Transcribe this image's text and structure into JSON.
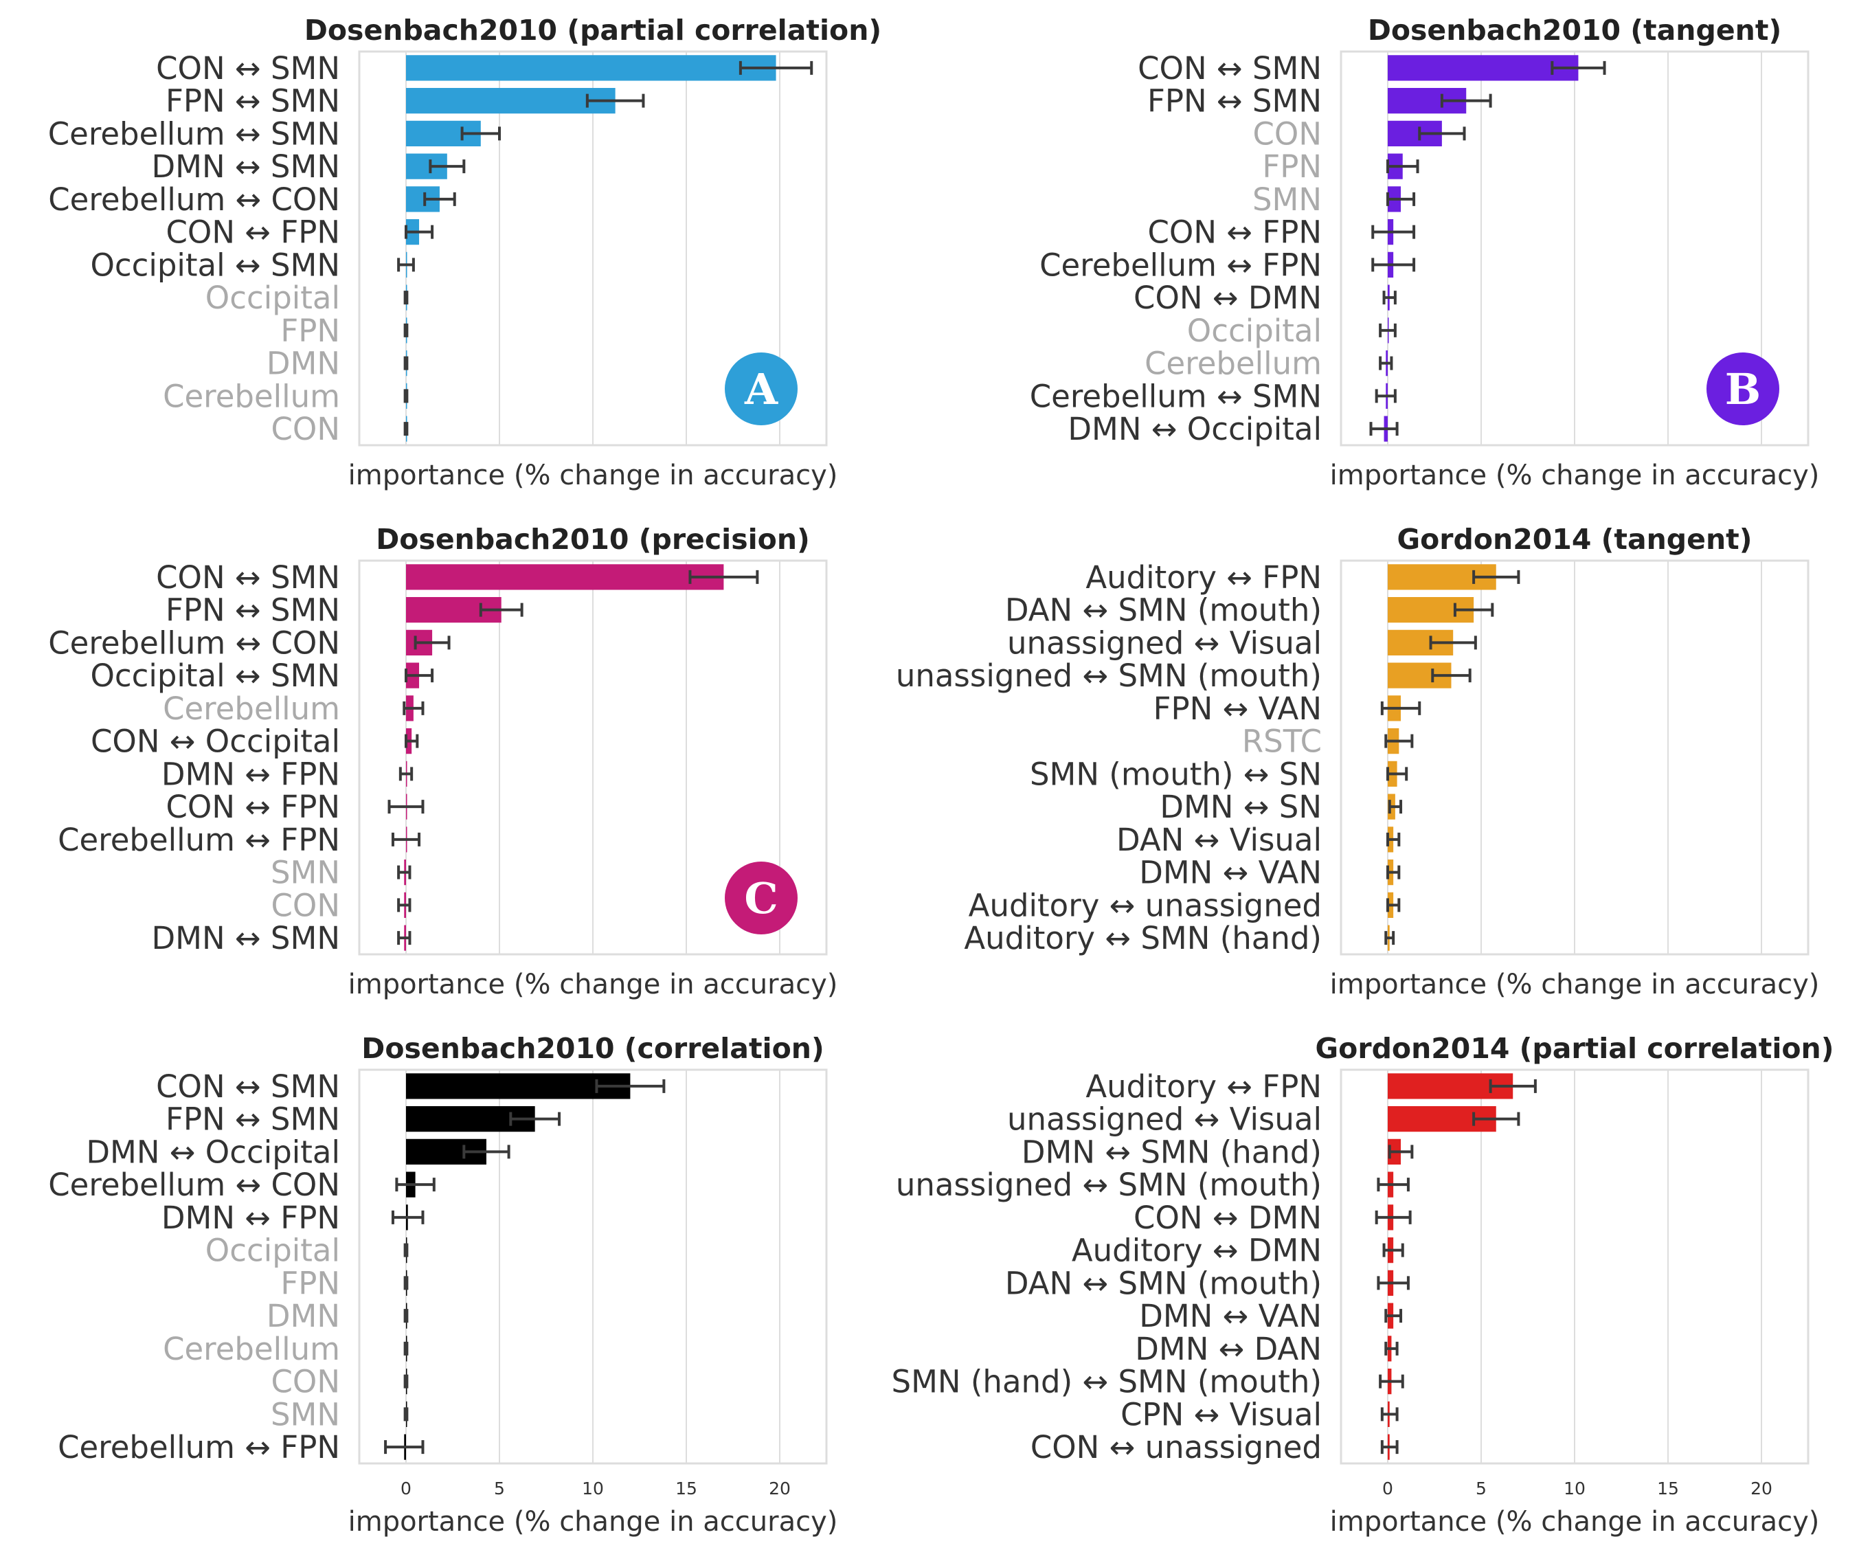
{
  "colors": {
    "dark_text": "#333333",
    "muted_text": "#aaaaaa",
    "grid": "#dddddd",
    "error_bar": "#3a3a3a"
  },
  "chart_data": [
    {
      "type": "bar",
      "panel": "top-left",
      "title": "Dosenbach2010 (partial correlation)",
      "xlabel": "importance (% change in accuracy)",
      "xlim": [
        -2.5,
        22.5
      ],
      "xticks": [],
      "color": "#2e9fd8",
      "badge": "A",
      "categories": [
        "CON ↔ SMN",
        "FPN ↔ SMN",
        "Cerebellum ↔ SMN",
        "DMN ↔ SMN",
        "Cerebellum ↔ CON",
        "CON ↔ FPN",
        "Occipital ↔ SMN",
        "Occipital",
        "FPN",
        "DMN",
        "Cerebellum",
        "CON"
      ],
      "muted": [
        false,
        false,
        false,
        false,
        false,
        false,
        false,
        true,
        true,
        true,
        true,
        true
      ],
      "values": [
        19.8,
        11.2,
        4.0,
        2.2,
        1.8,
        0.7,
        0.0,
        0.0,
        0.0,
        0.0,
        0.0,
        0.0
      ],
      "errors": [
        1.9,
        1.5,
        1.0,
        0.9,
        0.8,
        0.7,
        0.4,
        0.05,
        0.05,
        0.05,
        0.05,
        0.05
      ]
    },
    {
      "type": "bar",
      "panel": "top-right",
      "title": "Dosenbach2010 (tangent)",
      "xlabel": "importance (% change in accuracy)",
      "xlim": [
        -2.5,
        22.5
      ],
      "xticks": [],
      "color": "#6b1fe0",
      "badge": "B",
      "categories": [
        "CON ↔ SMN",
        "FPN ↔ SMN",
        "CON",
        "FPN",
        "SMN",
        "CON ↔ FPN",
        "Cerebellum ↔ FPN",
        "CON ↔ DMN",
        "Occipital",
        "Cerebellum",
        "Cerebellum ↔ SMN",
        "DMN ↔ Occipital"
      ],
      "muted": [
        false,
        false,
        true,
        true,
        true,
        false,
        false,
        false,
        true,
        true,
        false,
        false
      ],
      "values": [
        10.2,
        4.2,
        2.9,
        0.8,
        0.7,
        0.3,
        0.3,
        0.1,
        0.0,
        -0.1,
        -0.1,
        -0.2
      ],
      "errors": [
        1.4,
        1.3,
        1.2,
        0.8,
        0.7,
        1.1,
        1.1,
        0.3,
        0.4,
        0.3,
        0.5,
        0.7
      ]
    },
    {
      "type": "bar",
      "panel": "middle-left",
      "title": "Dosenbach2010 (precision)",
      "xlabel": "importance (% change in accuracy)",
      "xlim": [
        -2.5,
        22.5
      ],
      "xticks": [],
      "color": "#c41b77",
      "badge": "C",
      "categories": [
        "CON ↔ SMN",
        "FPN ↔ SMN",
        "Cerebellum ↔ CON",
        "Occipital ↔ SMN",
        "Cerebellum",
        "CON ↔ Occipital",
        "DMN ↔ FPN",
        "CON ↔ FPN",
        "Cerebellum ↔ FPN",
        "SMN",
        "CON",
        "DMN ↔ SMN"
      ],
      "muted": [
        false,
        false,
        false,
        false,
        true,
        false,
        false,
        false,
        false,
        true,
        true,
        false
      ],
      "values": [
        17.0,
        5.1,
        1.4,
        0.7,
        0.4,
        0.3,
        0.0,
        0.0,
        0.0,
        -0.1,
        -0.1,
        -0.1
      ],
      "errors": [
        1.8,
        1.1,
        0.9,
        0.7,
        0.5,
        0.3,
        0.3,
        0.9,
        0.7,
        0.3,
        0.3,
        0.3
      ]
    },
    {
      "type": "bar",
      "panel": "middle-right",
      "title": "Gordon2014 (tangent)",
      "xlabel": "importance (% change in accuracy)",
      "xlim": [
        -2.5,
        22.5
      ],
      "xticks": [],
      "color": "#e8a023",
      "categories": [
        "Auditory ↔ FPN",
        "DAN ↔ SMN (mouth)",
        "unassigned ↔ Visual",
        "unassigned ↔ SMN (mouth)",
        "FPN ↔ VAN",
        "RSTC",
        "SMN (mouth) ↔ SN",
        "DMN ↔ SN",
        "DAN ↔ Visual",
        "DMN ↔ VAN",
        "Auditory ↔ unassigned",
        "Auditory ↔ SMN (hand)"
      ],
      "muted": [
        false,
        false,
        false,
        false,
        false,
        true,
        false,
        false,
        false,
        false,
        false,
        false
      ],
      "values": [
        5.8,
        4.6,
        3.5,
        3.4,
        0.7,
        0.6,
        0.5,
        0.4,
        0.3,
        0.3,
        0.3,
        0.1
      ],
      "errors": [
        1.2,
        1.0,
        1.2,
        1.0,
        1.0,
        0.7,
        0.5,
        0.3,
        0.3,
        0.3,
        0.3,
        0.2
      ]
    },
    {
      "type": "bar",
      "panel": "bottom-left",
      "title": "Dosenbach2010 (correlation)",
      "xlabel": "importance (% change in accuracy)",
      "xlim": [
        -2.5,
        22.5
      ],
      "xticks": [
        0,
        5,
        10,
        15,
        20
      ],
      "color": "#000000",
      "categories": [
        "CON ↔ SMN",
        "FPN ↔ SMN",
        "DMN ↔ Occipital",
        "Cerebellum ↔ CON",
        "DMN ↔ FPN",
        "Occipital",
        "FPN",
        "DMN",
        "Cerebellum",
        "CON",
        "SMN",
        "Cerebellum ↔ FPN"
      ],
      "muted": [
        false,
        false,
        false,
        false,
        false,
        true,
        true,
        true,
        true,
        true,
        true,
        false
      ],
      "values": [
        12.0,
        6.9,
        4.3,
        0.5,
        0.1,
        0.0,
        0.0,
        0.0,
        0.0,
        0.0,
        0.0,
        -0.1
      ],
      "errors": [
        1.8,
        1.3,
        1.2,
        1.0,
        0.8,
        0.05,
        0.05,
        0.05,
        0.05,
        0.05,
        0.05,
        1.0
      ]
    },
    {
      "type": "bar",
      "panel": "bottom-right",
      "title": "Gordon2014 (partial correlation)",
      "xlabel": "importance (% change in accuracy)",
      "xlim": [
        -2.5,
        22.5
      ],
      "xticks": [
        0,
        5,
        10,
        15,
        20
      ],
      "color": "#e02020",
      "categories": [
        "Auditory ↔ FPN",
        "unassigned ↔ Visual",
        "DMN ↔ SMN (hand)",
        "unassigned ↔ SMN (mouth)",
        "CON ↔ DMN",
        "Auditory ↔ DMN",
        "DAN ↔ SMN (mouth)",
        "DMN ↔ VAN",
        "DMN ↔ DAN",
        "SMN (hand) ↔ SMN (mouth)",
        "CPN ↔ Visual",
        "CON ↔ unassigned"
      ],
      "muted": [
        false,
        false,
        false,
        false,
        false,
        false,
        false,
        false,
        false,
        false,
        false,
        false
      ],
      "values": [
        6.7,
        5.8,
        0.7,
        0.3,
        0.3,
        0.3,
        0.3,
        0.3,
        0.2,
        0.2,
        0.1,
        0.1
      ],
      "errors": [
        1.2,
        1.2,
        0.6,
        0.8,
        0.9,
        0.5,
        0.8,
        0.4,
        0.3,
        0.6,
        0.4,
        0.4
      ]
    }
  ]
}
